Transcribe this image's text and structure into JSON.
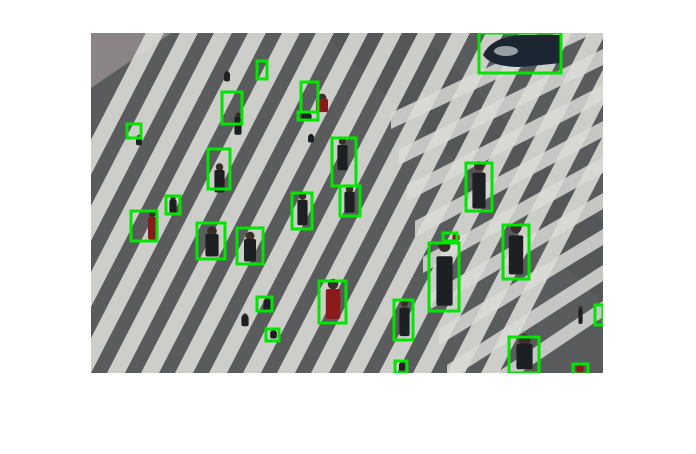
{
  "image": {
    "description_free": true,
    "colors": {
      "detection_box": "#00e600",
      "asphalt": "#5a5b5c",
      "asphalt_dark": "#4c4d4e",
      "stripe": "#d9d9d6",
      "car": "#1c2633"
    }
  },
  "detections": [
    {
      "label": "pedestrian"
    },
    {
      "label": "pedestrian"
    },
    {
      "label": "pedestrian"
    },
    {
      "label": "pedestrian"
    },
    {
      "label": "pedestrian"
    },
    {
      "label": "pedestrian"
    },
    {
      "label": "pedestrian"
    },
    {
      "label": "pedestrian"
    },
    {
      "label": "pedestrian"
    },
    {
      "label": "pedestrian"
    },
    {
      "label": "pedestrian"
    },
    {
      "label": "pedestrian"
    },
    {
      "label": "pedestrian"
    },
    {
      "label": "pedestrian"
    },
    {
      "label": "pedestrian"
    },
    {
      "label": "pedestrian"
    },
    {
      "label": "pedestrian"
    },
    {
      "label": "pedestrian"
    },
    {
      "label": "pedestrian"
    },
    {
      "label": "pedestrian"
    },
    {
      "label": "pedestrian"
    },
    {
      "label": "pedestrian"
    },
    {
      "label": "pedestrian"
    },
    {
      "label": "pedestrian"
    },
    {
      "label": "pedestrian"
    },
    {
      "label": "pedestrian"
    },
    {
      "label": "car"
    }
  ]
}
